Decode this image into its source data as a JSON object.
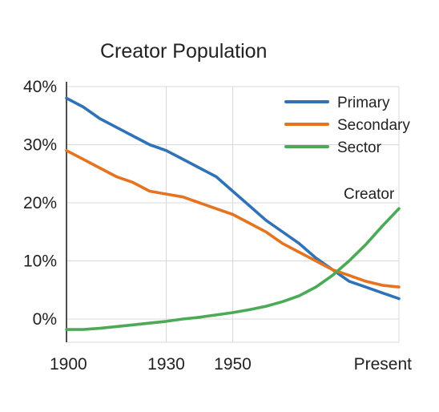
{
  "chart_data": {
    "type": "line",
    "title": "Creator Population",
    "xlabel": "",
    "ylabel": "",
    "x": [
      1900,
      1905,
      1910,
      1915,
      1920,
      1925,
      1930,
      1935,
      1940,
      1945,
      1950,
      1955,
      1960,
      1965,
      1970,
      1975,
      1980,
      1985,
      1990,
      1995,
      2000
    ],
    "xlim": [
      1900,
      2000
    ],
    "ylim": [
      -4,
      40
    ],
    "x_ticks": [
      {
        "value": 1900,
        "label": "1900"
      },
      {
        "value": 1930,
        "label": "1930"
      },
      {
        "value": 1950,
        "label": "1950"
      },
      {
        "value": 2000,
        "label": "Present"
      }
    ],
    "y_ticks": [
      {
        "value": 0,
        "label": "0%"
      },
      {
        "value": 10,
        "label": "10%"
      },
      {
        "value": 20,
        "label": "20%"
      },
      {
        "value": 30,
        "label": "30%"
      },
      {
        "value": 40,
        "label": "40%"
      }
    ],
    "grid": true,
    "legend_position": "top-right",
    "series": [
      {
        "name": "Primary",
        "color": "#2f72b8",
        "values": [
          38.0,
          36.5,
          34.5,
          33.0,
          31.5,
          30.0,
          29.0,
          27.5,
          26.0,
          24.5,
          22.0,
          19.5,
          17.0,
          15.0,
          13.0,
          10.5,
          8.5,
          6.5,
          5.5,
          4.5,
          3.5
        ]
      },
      {
        "name": "Secondary",
        "color": "#e5731f",
        "values": [
          29.0,
          27.5,
          26.0,
          24.5,
          23.5,
          22.0,
          21.5,
          21.0,
          20.0,
          19.0,
          18.0,
          16.5,
          15.0,
          13.0,
          11.5,
          10.0,
          8.5,
          7.5,
          6.5,
          5.8,
          5.5
        ]
      },
      {
        "name": "Sector",
        "color": "#4aaa55",
        "values": [
          -1.8,
          -1.8,
          -1.6,
          -1.3,
          -1.0,
          -0.7,
          -0.4,
          0.0,
          0.3,
          0.7,
          1.1,
          1.6,
          2.2,
          3.0,
          4.0,
          5.5,
          7.5,
          10.0,
          12.8,
          16.0,
          19.0
        ]
      }
    ],
    "annotations": [
      {
        "text": "Creator",
        "x": 1991,
        "y": 21.5
      }
    ]
  }
}
